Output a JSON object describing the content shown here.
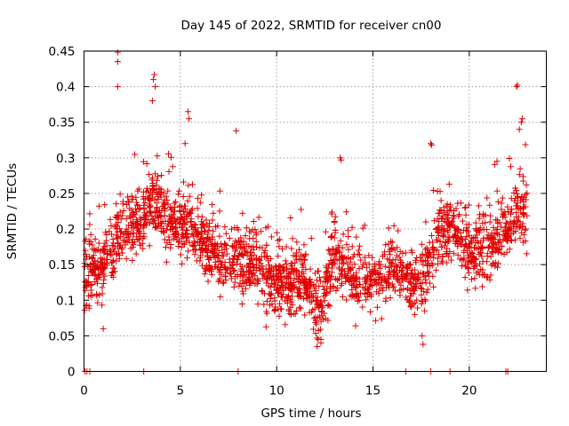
{
  "chart_data": {
    "type": "scatter",
    "title": "Day 145 of 2022, SRMTID for receiver cn00",
    "xlabel": "GPS time / hours",
    "ylabel": "SRMTID / TECUs",
    "xlim": [
      0,
      24
    ],
    "ylim": [
      0,
      0.45
    ],
    "xticks": [
      0,
      5,
      10,
      15,
      20
    ],
    "xtick_labels": [
      "0",
      "5",
      "10",
      "15",
      "20"
    ],
    "yticks": [
      0,
      0.05,
      0.1,
      0.15,
      0.2,
      0.25,
      0.3,
      0.35,
      0.4,
      0.45
    ],
    "ytick_labels": [
      "0",
      "0.05",
      "0.1",
      "0.15",
      "0.2",
      "0.25",
      "0.3",
      "0.35",
      "0.4",
      "0.45"
    ],
    "grid": true,
    "marker": "+",
    "color": "#e00000",
    "outliers": [
      {
        "x": 1.75,
        "y": 0.448
      },
      {
        "x": 1.75,
        "y": 0.435
      },
      {
        "x": 1.75,
        "y": 0.4
      },
      {
        "x": 3.65,
        "y": 0.417
      },
      {
        "x": 3.6,
        "y": 0.41
      },
      {
        "x": 3.7,
        "y": 0.4
      },
      {
        "x": 3.55,
        "y": 0.38
      },
      {
        "x": 5.4,
        "y": 0.365
      },
      {
        "x": 5.45,
        "y": 0.355
      },
      {
        "x": 7.9,
        "y": 0.338
      },
      {
        "x": 22.5,
        "y": 0.402
      },
      {
        "x": 22.45,
        "y": 0.4
      },
      {
        "x": 22.75,
        "y": 0.355
      },
      {
        "x": 22.7,
        "y": 0.35
      },
      {
        "x": 22.6,
        "y": 0.34
      },
      {
        "x": 18.0,
        "y": 0.32
      },
      {
        "x": 18.05,
        "y": 0.318
      },
      {
        "x": 13.3,
        "y": 0.3
      },
      {
        "x": 13.35,
        "y": 0.297
      },
      {
        "x": 12.1,
        "y": 0.035
      },
      {
        "x": 12.3,
        "y": 0.04
      },
      {
        "x": 17.6,
        "y": 0.038
      },
      {
        "x": 17.55,
        "y": 0.05
      },
      {
        "x": 1.0,
        "y": 0.06
      }
    ],
    "zero_values_x": [
      0.05,
      0.15,
      0.3,
      3.1,
      8.0,
      16.7,
      18.0,
      19.0,
      21.9,
      22.0
    ]
  }
}
